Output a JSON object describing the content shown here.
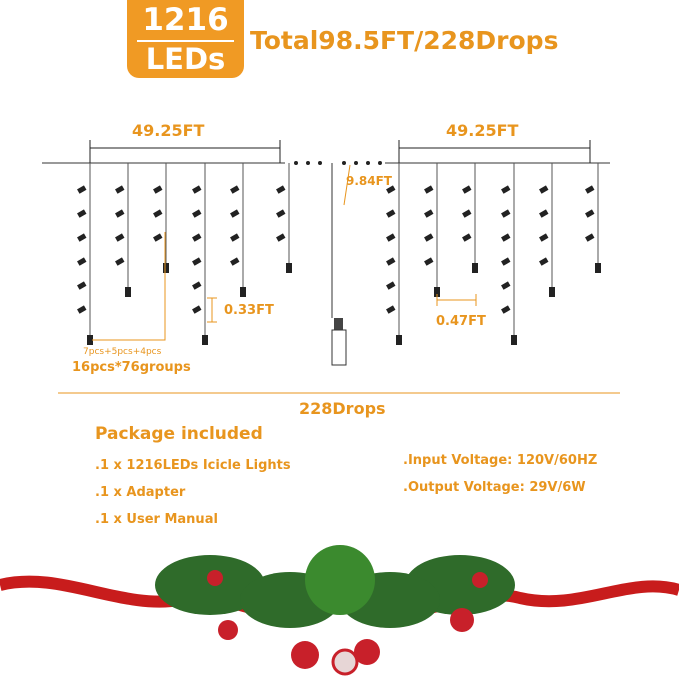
{
  "badge": {
    "count": "1216",
    "unit": "LEDs"
  },
  "headline": "Total98.5FT/228Drops",
  "diagram": {
    "left_length": "49.25FT",
    "right_length": "49.25FT",
    "lead_length": "9.84FT",
    "drop_spacing": "0.33FT",
    "drop_gap": "0.47FT",
    "group_pattern": "7pcs+5pcs+4pcs",
    "groups": "16pcs*76groups",
    "total_drops": "228Drops"
  },
  "package": {
    "title": "Package included",
    "items": [
      ".1 x 1216LEDs Icicle Lights",
      ".1 x Adapter",
      ".1 x User Manual"
    ]
  },
  "specs": [
    ".Input Voltage: 120V/60HZ",
    ".Output Voltage: 29V/6W"
  ],
  "colors": {
    "accent": "#e8951e",
    "badge": "#f09a24",
    "ribbon": "#d42020",
    "foliage": "#2f6b2a"
  }
}
